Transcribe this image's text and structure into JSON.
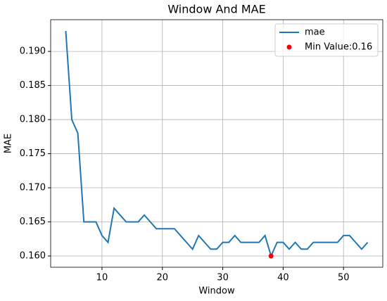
{
  "chart_data": {
    "type": "line",
    "title": "Window And MAE",
    "xlabel": "Window",
    "ylabel": "MAE",
    "x": [
      4,
      5,
      6,
      7,
      8,
      9,
      10,
      11,
      12,
      13,
      14,
      15,
      16,
      17,
      18,
      19,
      20,
      21,
      22,
      23,
      24,
      25,
      26,
      27,
      28,
      29,
      30,
      31,
      32,
      33,
      34,
      35,
      36,
      37,
      38,
      39,
      40,
      41,
      42,
      43,
      44,
      45,
      46,
      47,
      48,
      49,
      50,
      51,
      52,
      53,
      54
    ],
    "series": [
      {
        "name": "mae",
        "color": "#1f77b4",
        "values": [
          0.193,
          0.18,
          0.178,
          0.165,
          0.165,
          0.165,
          0.163,
          0.162,
          0.167,
          0.166,
          0.165,
          0.165,
          0.165,
          0.166,
          0.165,
          0.164,
          0.164,
          0.164,
          0.164,
          0.163,
          0.162,
          0.161,
          0.163,
          0.162,
          0.161,
          0.161,
          0.162,
          0.162,
          0.163,
          0.162,
          0.162,
          0.162,
          0.162,
          0.163,
          0.16,
          0.162,
          0.162,
          0.161,
          0.162,
          0.161,
          0.161,
          0.162,
          0.162,
          0.162,
          0.162,
          0.162,
          0.163,
          0.163,
          0.162,
          0.161,
          0.162
        ]
      },
      {
        "name": "Min Value:0.16",
        "type": "scatter",
        "color": "red",
        "x": [
          38
        ],
        "values": [
          0.16
        ]
      }
    ],
    "xlim": [
      1.5,
      56.5
    ],
    "xticks": [
      10,
      20,
      30,
      40,
      50
    ],
    "ylim": [
      0.15835,
      0.19465
    ],
    "yticks": [
      {
        "value": 0.16,
        "label": "0.160"
      },
      {
        "value": 0.165,
        "label": "0.165"
      },
      {
        "value": 0.17,
        "label": "0.170"
      },
      {
        "value": 0.175,
        "label": "0.175"
      },
      {
        "value": 0.18,
        "label": "0.180"
      },
      {
        "value": 0.185,
        "label": "0.185"
      },
      {
        "value": 0.19,
        "label": "0.190"
      }
    ],
    "grid": true,
    "legend": "upper right"
  }
}
